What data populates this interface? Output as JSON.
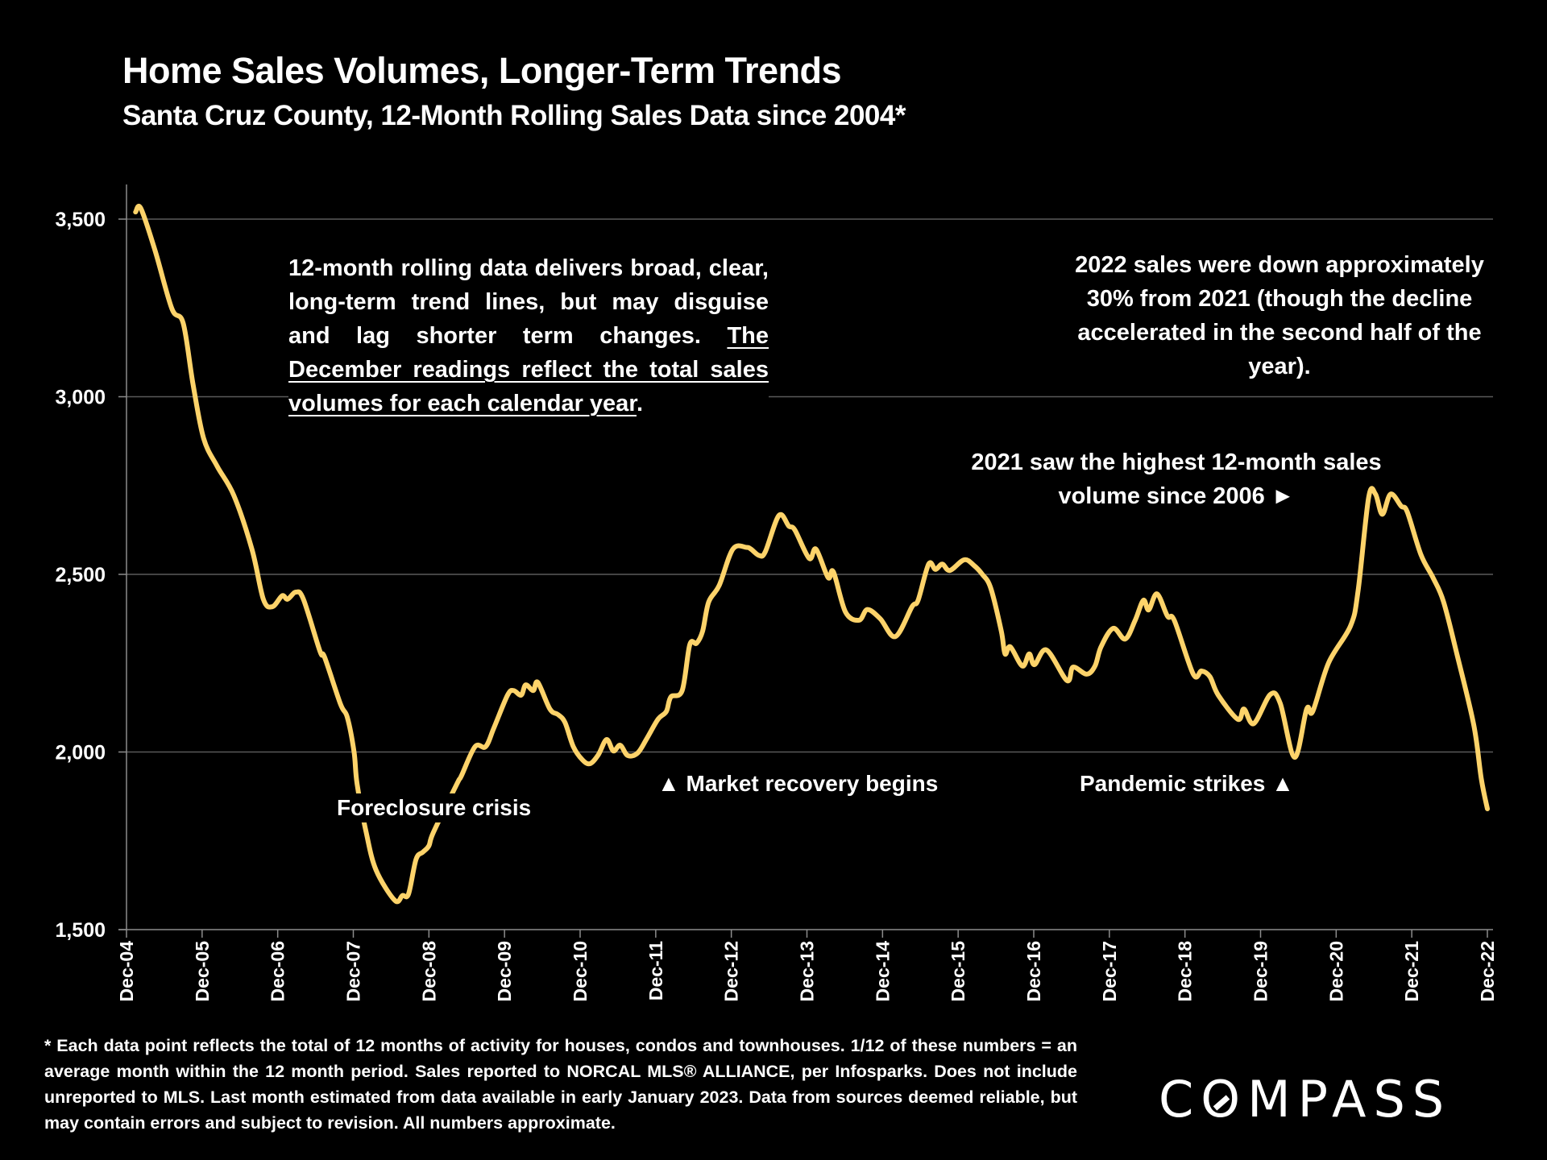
{
  "header": {
    "title": "Home Sales Volumes, Longer-Term Trends",
    "subtitle": "Santa Cruz County, 12-Month Rolling Sales Data since 2004*"
  },
  "annotations": {
    "rolling_note_plain": "12-month rolling data delivers broad, clear, long-term trend lines, but may disguise and lag shorter term changes. ",
    "rolling_note_underlined": "The December readings reflect the total sales volumes for each calendar year",
    "rolling_note_end": ".",
    "decline_note": "2022 sales were down approximately 30% from 2021 (though the decline accelerated in the second half of the year).",
    "peak_note": "2021 saw the highest 12-month sales volume since 2006 ►",
    "foreclosure": "Foreclosure crisis",
    "recovery": "▲  Market recovery begins",
    "pandemic": "Pandemic strikes ▲"
  },
  "footnote": "* Each data point reflects the total of 12 months of activity for houses, condos and townhouses. 1/12 of these numbers = an average month within the 12 month period. Sales reported to NORCAL MLS® ALLIANCE, per Infosparks. Does not include unreported to MLS. Last month estimated from data available in early January 2023. Data from sources deemed reliable, but may contain errors and subject to revision. All numbers approximate.",
  "logo": {
    "text_before": "C",
    "text_o": "O",
    "text_after": "MPASS"
  },
  "colors": {
    "line": "#FDD36A",
    "grid": "#5a5a5a",
    "axis": "#8c8c8c",
    "background": "#000000",
    "text": "#ffffff"
  },
  "chart_data": {
    "type": "line",
    "title": "Home Sales Volumes, Longer-Term Trends",
    "subtitle": "Santa Cruz County, 12-Month Rolling Sales Data since 2004*",
    "xlabel": "",
    "ylabel": "",
    "x_units": "years since Dec-04",
    "xlim": [
      0,
      18
    ],
    "ylim": [
      1500,
      3600
    ],
    "yticks": [
      1500,
      2000,
      2500,
      3000,
      3500
    ],
    "ytick_labels": [
      "1,500",
      "2,000",
      "2,500",
      "3,000",
      "3,500"
    ],
    "xtick_labels": [
      "Dec-04",
      "Dec-05",
      "Dec-06",
      "Dec-07",
      "Dec-08",
      "Dec-09",
      "Dec-10",
      "Dec-11",
      "Dec-12",
      "Dec-13",
      "Dec-14",
      "Dec-15",
      "Dec-16",
      "Dec-17",
      "Dec-18",
      "Dec-19",
      "Dec-20",
      "Dec-21",
      "Dec-22"
    ],
    "grid": true,
    "legend": "none",
    "series": [
      {
        "name": "12-Month Rolling Home Sales",
        "points": [
          [
            0.12,
            3520
          ],
          [
            0.19,
            3530
          ],
          [
            0.38,
            3410
          ],
          [
            0.6,
            3248
          ],
          [
            0.75,
            3207
          ],
          [
            0.88,
            3035
          ],
          [
            1.02,
            2883
          ],
          [
            1.2,
            2804
          ],
          [
            1.42,
            2722
          ],
          [
            1.66,
            2570
          ],
          [
            1.81,
            2430
          ],
          [
            1.93,
            2409
          ],
          [
            2.06,
            2440
          ],
          [
            2.13,
            2430
          ],
          [
            2.24,
            2450
          ],
          [
            2.34,
            2430
          ],
          [
            2.56,
            2283
          ],
          [
            2.62,
            2267
          ],
          [
            2.83,
            2135
          ],
          [
            2.92,
            2098
          ],
          [
            3.01,
            2000
          ],
          [
            3.05,
            1910
          ],
          [
            3.17,
            1774
          ],
          [
            3.3,
            1668
          ],
          [
            3.55,
            1582
          ],
          [
            3.65,
            1596
          ],
          [
            3.73,
            1600
          ],
          [
            3.83,
            1698
          ],
          [
            3.92,
            1718
          ],
          [
            4.0,
            1736
          ],
          [
            4.06,
            1774
          ],
          [
            4.37,
            1910
          ],
          [
            4.43,
            1933
          ],
          [
            4.61,
            2015
          ],
          [
            4.75,
            2015
          ],
          [
            4.86,
            2068
          ],
          [
            5.04,
            2160
          ],
          [
            5.12,
            2173
          ],
          [
            5.22,
            2160
          ],
          [
            5.28,
            2189
          ],
          [
            5.38,
            2173
          ],
          [
            5.44,
            2196
          ],
          [
            5.6,
            2121
          ],
          [
            5.71,
            2105
          ],
          [
            5.8,
            2083
          ],
          [
            5.91,
            2015
          ],
          [
            6.03,
            1978
          ],
          [
            6.13,
            1967
          ],
          [
            6.24,
            1992
          ],
          [
            6.35,
            2035
          ],
          [
            6.44,
            2003
          ],
          [
            6.53,
            2019
          ],
          [
            6.63,
            1990
          ],
          [
            6.76,
            1997
          ],
          [
            6.88,
            2037
          ],
          [
            7.03,
            2092
          ],
          [
            7.14,
            2114
          ],
          [
            7.2,
            2155
          ],
          [
            7.35,
            2173
          ],
          [
            7.45,
            2302
          ],
          [
            7.54,
            2306
          ],
          [
            7.62,
            2340
          ],
          [
            7.7,
            2422
          ],
          [
            7.84,
            2469
          ],
          [
            8.02,
            2571
          ],
          [
            8.2,
            2576
          ],
          [
            8.26,
            2571
          ],
          [
            8.37,
            2553
          ],
          [
            8.45,
            2564
          ],
          [
            8.63,
            2666
          ],
          [
            8.76,
            2636
          ],
          [
            8.84,
            2625
          ],
          [
            9.03,
            2545
          ],
          [
            9.12,
            2571
          ],
          [
            9.28,
            2491
          ],
          [
            9.35,
            2507
          ],
          [
            9.51,
            2394
          ],
          [
            9.69,
            2371
          ],
          [
            9.8,
            2401
          ],
          [
            9.97,
            2375
          ],
          [
            10.17,
            2325
          ],
          [
            10.39,
            2409
          ],
          [
            10.47,
            2427
          ],
          [
            10.61,
            2529
          ],
          [
            10.7,
            2514
          ],
          [
            10.79,
            2529
          ],
          [
            10.89,
            2511
          ],
          [
            11.08,
            2541
          ],
          [
            11.21,
            2525
          ],
          [
            11.32,
            2500
          ],
          [
            11.43,
            2462
          ],
          [
            11.57,
            2341
          ],
          [
            11.62,
            2276
          ],
          [
            11.69,
            2296
          ],
          [
            11.85,
            2242
          ],
          [
            11.94,
            2276
          ],
          [
            12.01,
            2246
          ],
          [
            12.17,
            2287
          ],
          [
            12.44,
            2201
          ],
          [
            12.52,
            2239
          ],
          [
            12.7,
            2219
          ],
          [
            12.81,
            2242
          ],
          [
            12.89,
            2296
          ],
          [
            13.05,
            2348
          ],
          [
            13.21,
            2318
          ],
          [
            13.34,
            2370
          ],
          [
            13.45,
            2427
          ],
          [
            13.52,
            2400
          ],
          [
            13.63,
            2445
          ],
          [
            13.77,
            2382
          ],
          [
            13.86,
            2370
          ],
          [
            14.11,
            2219
          ],
          [
            14.22,
            2228
          ],
          [
            14.33,
            2212
          ],
          [
            14.44,
            2160
          ],
          [
            14.7,
            2092
          ],
          [
            14.78,
            2121
          ],
          [
            14.91,
            2080
          ],
          [
            15.13,
            2162
          ],
          [
            15.26,
            2137
          ],
          [
            15.45,
            1985
          ],
          [
            15.61,
            2121
          ],
          [
            15.69,
            2114
          ],
          [
            15.9,
            2251
          ],
          [
            16.19,
            2355
          ],
          [
            16.29,
            2454
          ],
          [
            16.43,
            2717
          ],
          [
            16.52,
            2726
          ],
          [
            16.61,
            2669
          ],
          [
            16.72,
            2726
          ],
          [
            16.86,
            2692
          ],
          [
            16.94,
            2676
          ],
          [
            17.12,
            2556
          ],
          [
            17.28,
            2491
          ],
          [
            17.42,
            2423
          ],
          [
            17.6,
            2273
          ],
          [
            17.82,
            2076
          ],
          [
            17.92,
            1924
          ],
          [
            18.0,
            1840
          ]
        ]
      }
    ],
    "annotations": [
      "12-month rolling data delivers broad, clear, long-term trend lines, but may disguise and lag shorter term changes. The December readings reflect the total sales volumes for each calendar year.",
      "2022 sales were down approximately 30% from 2021 (though the decline accelerated in the second half of the year).",
      "2021 saw the highest 12-month sales volume since 2006",
      "Foreclosure crisis",
      "Market recovery begins",
      "Pandemic strikes"
    ]
  }
}
